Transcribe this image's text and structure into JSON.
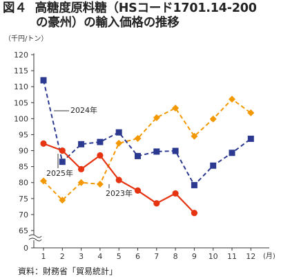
{
  "figure_label": "図４",
  "title_line1": "高糖度原料糖（HSコード1701.14-200",
  "title_line2": "の豪州）の輸入価格の推移",
  "source": "資料：財務省「貿易統計」",
  "chart_data": {
    "type": "line",
    "y_unit": "（千円/トン）",
    "x_unit": "(月)",
    "categories": [
      "1",
      "2",
      "3",
      "4",
      "5",
      "6",
      "7",
      "8",
      "9",
      "10",
      "11",
      "12"
    ],
    "y_ticks": [
      0,
      65,
      70,
      75,
      80,
      85,
      90,
      95,
      100,
      105,
      110,
      115,
      120
    ],
    "ylim": [
      65,
      120
    ],
    "y_axis_break": true,
    "grid": false,
    "series": [
      {
        "name": "2024年",
        "color": "#2b3990",
        "line_style": "dashed",
        "marker": "square",
        "values": [
          112,
          86.5,
          92,
          92.7,
          95.7,
          88.3,
          89.7,
          89.9,
          79.2,
          85.3,
          89.3,
          93.7
        ]
      },
      {
        "name": "2025年",
        "color": "#e63312",
        "line_style": "solid",
        "marker": "circle",
        "values": [
          92.2,
          90,
          84.2,
          88.5,
          80.8,
          77.5,
          73.5,
          76.6,
          70.5,
          null,
          null,
          null
        ]
      },
      {
        "name": "2023年",
        "color": "#f39800",
        "line_style": "dashed",
        "marker": "diamond",
        "values": [
          80.5,
          74.5,
          80,
          79.5,
          92.3,
          93.8,
          100.3,
          103.3,
          94.5,
          99.9,
          106.1,
          101.8
        ]
      }
    ]
  }
}
